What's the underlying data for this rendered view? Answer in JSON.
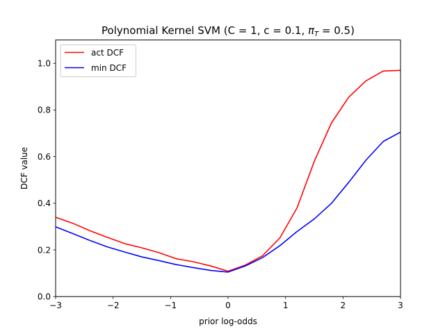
{
  "chart_data": {
    "type": "line",
    "title_prefix": "Polynomial Kernel SVM (C = 1, c = 0.1, ",
    "title_pi": "π",
    "title_pi_sub": "T",
    "title_suffix": " = 0.5)",
    "xlabel": "prior log-odds",
    "ylabel": "DCF value",
    "xlim": [
      -3,
      3
    ],
    "ylim": [
      0,
      1.1
    ],
    "xticks": [
      -3,
      -2,
      -1,
      0,
      1,
      2,
      3
    ],
    "xtick_labels": [
      "−3",
      "−2",
      "−1",
      "0",
      "1",
      "2",
      "3"
    ],
    "yticks": [
      0.0,
      0.2,
      0.4,
      0.6,
      0.8,
      1.0
    ],
    "ytick_labels": [
      "0.0",
      "0.2",
      "0.4",
      "0.6",
      "0.8",
      "1.0"
    ],
    "legend_position": "top-left",
    "x": [
      -3.0,
      -2.7,
      -2.4,
      -2.1,
      -1.8,
      -1.5,
      -1.2,
      -0.9,
      -0.6,
      -0.3,
      0.0,
      0.3,
      0.6,
      0.9,
      1.2,
      1.5,
      1.8,
      2.1,
      2.4,
      2.7,
      3.0
    ],
    "series": [
      {
        "name": "act DCF",
        "color": "#ff0000",
        "values": [
          0.34,
          0.314,
          0.282,
          0.254,
          0.227,
          0.209,
          0.188,
          0.162,
          0.149,
          0.131,
          0.109,
          0.135,
          0.175,
          0.251,
          0.38,
          0.58,
          0.745,
          0.855,
          0.925,
          0.967,
          0.97
        ]
      },
      {
        "name": "min DCF",
        "color": "#0000ff",
        "values": [
          0.299,
          0.27,
          0.24,
          0.213,
          0.191,
          0.17,
          0.154,
          0.137,
          0.124,
          0.112,
          0.105,
          0.131,
          0.167,
          0.218,
          0.279,
          0.333,
          0.4,
          0.49,
          0.585,
          0.665,
          0.705
        ]
      }
    ]
  }
}
